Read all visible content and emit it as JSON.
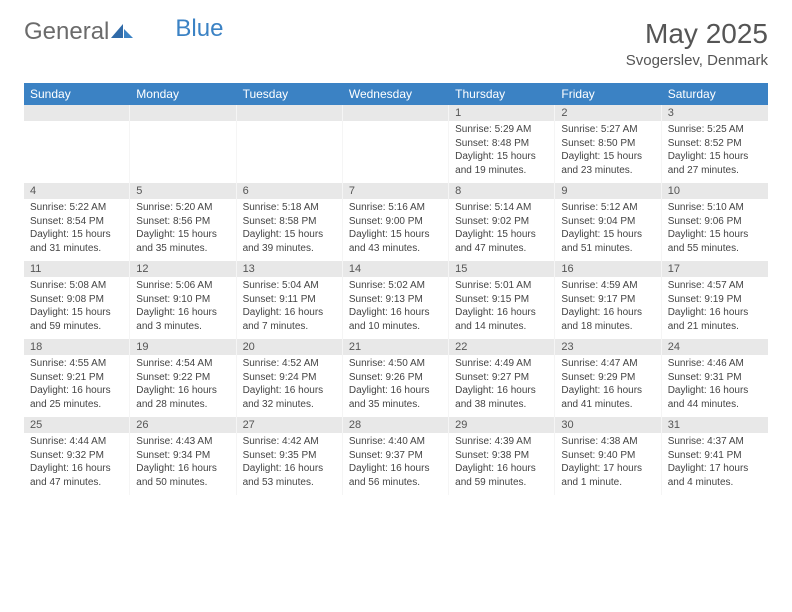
{
  "logo": {
    "text_a": "General",
    "text_b": "Blue"
  },
  "title": "May 2025",
  "location": "Svogerslev, Denmark",
  "colors": {
    "header_bg": "#3b82c4",
    "header_fg": "#ffffff",
    "daynum_bg": "#e8e8e8",
    "text": "#444444",
    "title": "#555555"
  },
  "day_names": [
    "Sunday",
    "Monday",
    "Tuesday",
    "Wednesday",
    "Thursday",
    "Friday",
    "Saturday"
  ],
  "weeks": [
    {
      "nums": [
        "",
        "",
        "",
        "",
        "1",
        "2",
        "3"
      ],
      "cells": [
        null,
        null,
        null,
        null,
        {
          "sunrise": "Sunrise: 5:29 AM",
          "sunset": "Sunset: 8:48 PM",
          "daylight": "Daylight: 15 hours and 19 minutes."
        },
        {
          "sunrise": "Sunrise: 5:27 AM",
          "sunset": "Sunset: 8:50 PM",
          "daylight": "Daylight: 15 hours and 23 minutes."
        },
        {
          "sunrise": "Sunrise: 5:25 AM",
          "sunset": "Sunset: 8:52 PM",
          "daylight": "Daylight: 15 hours and 27 minutes."
        }
      ]
    },
    {
      "nums": [
        "4",
        "5",
        "6",
        "7",
        "8",
        "9",
        "10"
      ],
      "cells": [
        {
          "sunrise": "Sunrise: 5:22 AM",
          "sunset": "Sunset: 8:54 PM",
          "daylight": "Daylight: 15 hours and 31 minutes."
        },
        {
          "sunrise": "Sunrise: 5:20 AM",
          "sunset": "Sunset: 8:56 PM",
          "daylight": "Daylight: 15 hours and 35 minutes."
        },
        {
          "sunrise": "Sunrise: 5:18 AM",
          "sunset": "Sunset: 8:58 PM",
          "daylight": "Daylight: 15 hours and 39 minutes."
        },
        {
          "sunrise": "Sunrise: 5:16 AM",
          "sunset": "Sunset: 9:00 PM",
          "daylight": "Daylight: 15 hours and 43 minutes."
        },
        {
          "sunrise": "Sunrise: 5:14 AM",
          "sunset": "Sunset: 9:02 PM",
          "daylight": "Daylight: 15 hours and 47 minutes."
        },
        {
          "sunrise": "Sunrise: 5:12 AM",
          "sunset": "Sunset: 9:04 PM",
          "daylight": "Daylight: 15 hours and 51 minutes."
        },
        {
          "sunrise": "Sunrise: 5:10 AM",
          "sunset": "Sunset: 9:06 PM",
          "daylight": "Daylight: 15 hours and 55 minutes."
        }
      ]
    },
    {
      "nums": [
        "11",
        "12",
        "13",
        "14",
        "15",
        "16",
        "17"
      ],
      "cells": [
        {
          "sunrise": "Sunrise: 5:08 AM",
          "sunset": "Sunset: 9:08 PM",
          "daylight": "Daylight: 15 hours and 59 minutes."
        },
        {
          "sunrise": "Sunrise: 5:06 AM",
          "sunset": "Sunset: 9:10 PM",
          "daylight": "Daylight: 16 hours and 3 minutes."
        },
        {
          "sunrise": "Sunrise: 5:04 AM",
          "sunset": "Sunset: 9:11 PM",
          "daylight": "Daylight: 16 hours and 7 minutes."
        },
        {
          "sunrise": "Sunrise: 5:02 AM",
          "sunset": "Sunset: 9:13 PM",
          "daylight": "Daylight: 16 hours and 10 minutes."
        },
        {
          "sunrise": "Sunrise: 5:01 AM",
          "sunset": "Sunset: 9:15 PM",
          "daylight": "Daylight: 16 hours and 14 minutes."
        },
        {
          "sunrise": "Sunrise: 4:59 AM",
          "sunset": "Sunset: 9:17 PM",
          "daylight": "Daylight: 16 hours and 18 minutes."
        },
        {
          "sunrise": "Sunrise: 4:57 AM",
          "sunset": "Sunset: 9:19 PM",
          "daylight": "Daylight: 16 hours and 21 minutes."
        }
      ]
    },
    {
      "nums": [
        "18",
        "19",
        "20",
        "21",
        "22",
        "23",
        "24"
      ],
      "cells": [
        {
          "sunrise": "Sunrise: 4:55 AM",
          "sunset": "Sunset: 9:21 PM",
          "daylight": "Daylight: 16 hours and 25 minutes."
        },
        {
          "sunrise": "Sunrise: 4:54 AM",
          "sunset": "Sunset: 9:22 PM",
          "daylight": "Daylight: 16 hours and 28 minutes."
        },
        {
          "sunrise": "Sunrise: 4:52 AM",
          "sunset": "Sunset: 9:24 PM",
          "daylight": "Daylight: 16 hours and 32 minutes."
        },
        {
          "sunrise": "Sunrise: 4:50 AM",
          "sunset": "Sunset: 9:26 PM",
          "daylight": "Daylight: 16 hours and 35 minutes."
        },
        {
          "sunrise": "Sunrise: 4:49 AM",
          "sunset": "Sunset: 9:27 PM",
          "daylight": "Daylight: 16 hours and 38 minutes."
        },
        {
          "sunrise": "Sunrise: 4:47 AM",
          "sunset": "Sunset: 9:29 PM",
          "daylight": "Daylight: 16 hours and 41 minutes."
        },
        {
          "sunrise": "Sunrise: 4:46 AM",
          "sunset": "Sunset: 9:31 PM",
          "daylight": "Daylight: 16 hours and 44 minutes."
        }
      ]
    },
    {
      "nums": [
        "25",
        "26",
        "27",
        "28",
        "29",
        "30",
        "31"
      ],
      "cells": [
        {
          "sunrise": "Sunrise: 4:44 AM",
          "sunset": "Sunset: 9:32 PM",
          "daylight": "Daylight: 16 hours and 47 minutes."
        },
        {
          "sunrise": "Sunrise: 4:43 AM",
          "sunset": "Sunset: 9:34 PM",
          "daylight": "Daylight: 16 hours and 50 minutes."
        },
        {
          "sunrise": "Sunrise: 4:42 AM",
          "sunset": "Sunset: 9:35 PM",
          "daylight": "Daylight: 16 hours and 53 minutes."
        },
        {
          "sunrise": "Sunrise: 4:40 AM",
          "sunset": "Sunset: 9:37 PM",
          "daylight": "Daylight: 16 hours and 56 minutes."
        },
        {
          "sunrise": "Sunrise: 4:39 AM",
          "sunset": "Sunset: 9:38 PM",
          "daylight": "Daylight: 16 hours and 59 minutes."
        },
        {
          "sunrise": "Sunrise: 4:38 AM",
          "sunset": "Sunset: 9:40 PM",
          "daylight": "Daylight: 17 hours and 1 minute."
        },
        {
          "sunrise": "Sunrise: 4:37 AM",
          "sunset": "Sunset: 9:41 PM",
          "daylight": "Daylight: 17 hours and 4 minutes."
        }
      ]
    }
  ]
}
